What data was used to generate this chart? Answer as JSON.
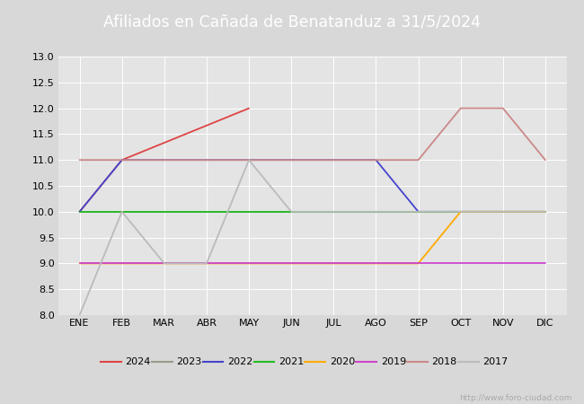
{
  "title": "Afiliados en Cañada de Benatanduz a 31/5/2024",
  "months": [
    "ENE",
    "FEB",
    "MAR",
    "ABR",
    "MAY",
    "JUN",
    "JUL",
    "AGO",
    "SEP",
    "OCT",
    "NOV",
    "DIC"
  ],
  "month_indices": [
    1,
    2,
    3,
    4,
    5,
    6,
    7,
    8,
    9,
    10,
    11,
    12
  ],
  "ylim": [
    8.0,
    13.0
  ],
  "yticks": [
    8.0,
    8.5,
    9.0,
    9.5,
    10.0,
    10.5,
    11.0,
    11.5,
    12.0,
    12.5,
    13.0
  ],
  "series": {
    "2024": {
      "color": "#dd4444",
      "x": [
        1,
        2,
        5
      ],
      "y": [
        10,
        11,
        12
      ]
    },
    "2023": {
      "color": "#999988",
      "x": [
        1,
        2,
        3,
        4,
        5,
        6,
        7,
        8,
        9,
        10,
        11,
        12
      ],
      "y": [
        10,
        10,
        10,
        10,
        10,
        10,
        10,
        10,
        10,
        10,
        10,
        10
      ]
    },
    "2022": {
      "color": "#4444cc",
      "x": [
        1,
        2,
        3,
        4,
        5,
        6,
        7,
        8,
        9,
        10,
        11,
        12
      ],
      "y": [
        10,
        11,
        11,
        11,
        11,
        11,
        11,
        11,
        10,
        10,
        10,
        10
      ]
    },
    "2021": {
      "color": "#22bb22",
      "x": [
        1,
        2,
        3,
        4,
        5,
        6,
        7,
        8,
        9,
        10,
        11,
        12
      ],
      "y": [
        10,
        10,
        10,
        10,
        10,
        10,
        10,
        10,
        10,
        10,
        10,
        10
      ]
    },
    "2020": {
      "color": "#ffaa00",
      "x": [
        1,
        2,
        3,
        4,
        5,
        6,
        7,
        8,
        9,
        10,
        11,
        12
      ],
      "y": [
        9,
        9,
        9,
        9,
        9,
        9,
        9,
        9,
        9,
        10,
        10,
        10
      ]
    },
    "2019": {
      "color": "#cc44cc",
      "x": [
        1,
        2,
        3,
        4,
        5,
        6,
        7,
        8,
        9,
        10,
        11,
        12
      ],
      "y": [
        9,
        9,
        9,
        9,
        9,
        9,
        9,
        9,
        9,
        9,
        9,
        9
      ]
    },
    "2018": {
      "color": "#cc8888",
      "x": [
        1,
        2,
        3,
        4,
        5,
        6,
        7,
        8,
        9,
        10,
        11,
        12
      ],
      "y": [
        11,
        11,
        11,
        11,
        11,
        11,
        11,
        11,
        11,
        12,
        12,
        11
      ]
    },
    "2017": {
      "color": "#bbbbbb",
      "x": [
        1,
        2,
        3,
        4,
        5,
        6,
        7,
        8,
        9,
        10,
        11,
        12
      ],
      "y": [
        8,
        10,
        9,
        9,
        11,
        10,
        10,
        10,
        10,
        10,
        10,
        10
      ]
    }
  },
  "title_bar_color": "#4466bb",
  "title_text_color": "#ffffff",
  "fig_bg_color": "#d8d8d8",
  "plot_bg_color": "#e4e4e4",
  "legend_bg_color": "#ffffff",
  "watermark": "http://www.foro-ciudad.com",
  "watermark_color": "#aaaaaa",
  "grid_color": "#ffffff",
  "title_fontsize": 12.5,
  "tick_fontsize": 8,
  "legend_fontsize": 8
}
